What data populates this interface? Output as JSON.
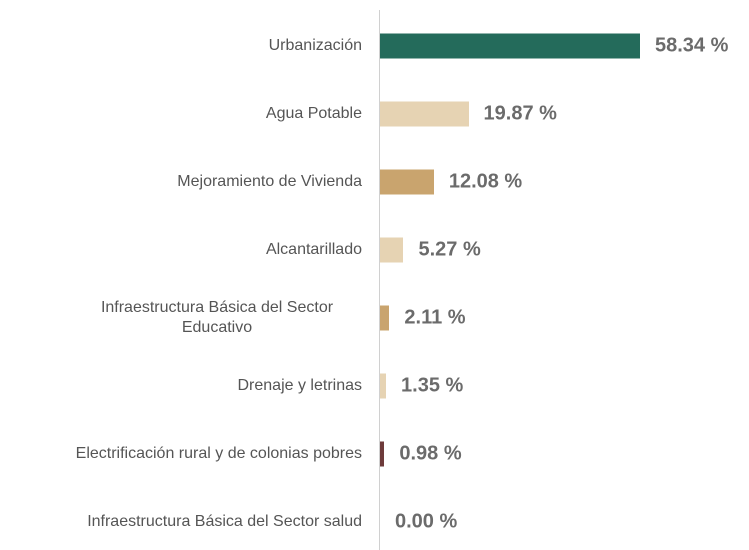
{
  "chart_data": {
    "type": "bar",
    "orientation": "horizontal",
    "categories": [
      "Urbanización",
      "Agua Potable",
      "Mejoramiento de Vivienda",
      "Alcantarillado",
      "Infraestructura Básica del Sector Educativo",
      "Drenaje y letrinas",
      "Electrificación rural y de colonias pobres",
      "Infraestructura Básica del Sector salud"
    ],
    "values": [
      58.34,
      19.87,
      12.08,
      5.27,
      2.11,
      1.35,
      0.98,
      0.0
    ],
    "value_labels": [
      "58.34 %",
      "19.87 %",
      "12.08 %",
      "5.27 %",
      "2.11 %",
      "1.35 %",
      "0.98 %",
      "0.00 %"
    ],
    "colors": [
      "#246b5b",
      "#e6d3b3",
      "#c9a46e",
      "#e6d3b3",
      "#c9a46e",
      "#e6d3b3",
      "#6e3b3b",
      "#e6d3b3"
    ]
  }
}
